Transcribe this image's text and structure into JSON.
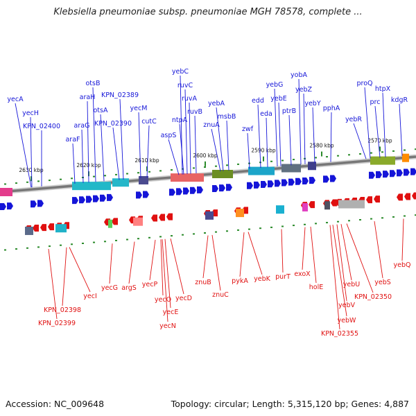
{
  "title": "Klebsiella pneumoniae subsp. pneumoniae MGH 78578, complete ...",
  "footer": {
    "accession": "Accession: NC_009648",
    "topology": "Topology: circular; Length: 5,315,120 bp; Genes: 4,887"
  },
  "colors": {
    "forward": "#1515d8",
    "reverse": "#e01010",
    "backbone": "#777777",
    "ticks": "#2a8a2a"
  },
  "ticks": [
    "2630 kbp",
    "2620 kbp",
    "2610 kbp",
    "2600 kbp",
    "2590 kbp",
    "2580 kbp",
    "2570 kbp"
  ],
  "top_genes": [
    "yecA",
    "yecH",
    "KPN_02400",
    "araF",
    "araG",
    "araH",
    "otsB",
    "otsA",
    "KPN_02390",
    "KPN_02389",
    "yecM",
    "cutC",
    "aspS",
    "ntpA",
    "yebC",
    "ruvC",
    "ruvA",
    "ruvB",
    "znuA",
    "yebA",
    "msbB",
    "zwf",
    "edd",
    "eda",
    "yebG",
    "yebE",
    "ptrB",
    "yobA",
    "yebZ",
    "yebY",
    "pphA",
    "yebR",
    "proQ",
    "prc",
    "htpX",
    "kdgR"
  ],
  "bottom_genes": [
    "KPN_02398",
    "KPN_02399",
    "yecI",
    "yecG",
    "argS",
    "yecP",
    "yecO",
    "yecE",
    "yecN",
    "yecD",
    "znuB",
    "znuC",
    "pykA",
    "yebK",
    "purT",
    "exoX",
    "holE",
    "yebU",
    "yebV",
    "yebW",
    "KPN_02355",
    "KPN_02350",
    "yebS",
    "yebQ"
  ]
}
